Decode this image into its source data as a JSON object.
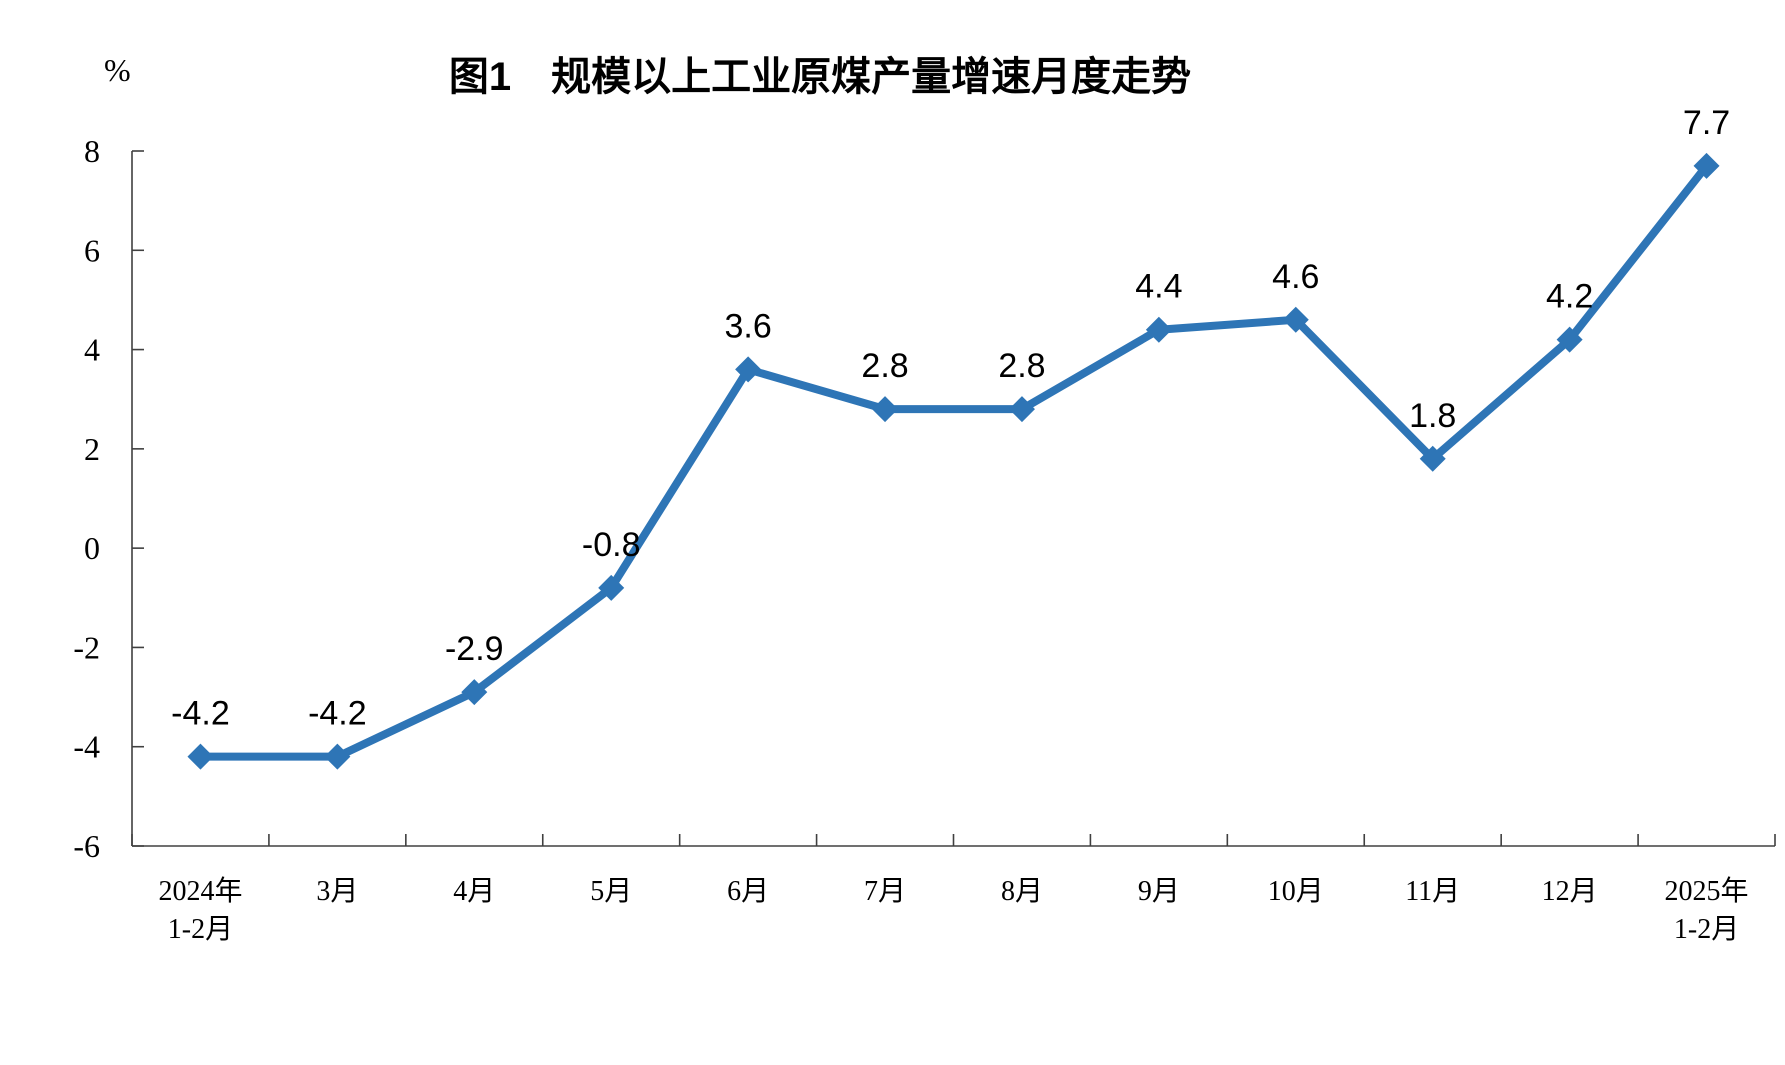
{
  "chart_data": {
    "type": "line",
    "title": "图1　规模以上工业原煤产量增速月度走势",
    "unit_label": "%",
    "categories": [
      [
        "2024年",
        "1-2月"
      ],
      [
        "3月"
      ],
      [
        "4月"
      ],
      [
        "5月"
      ],
      [
        "6月"
      ],
      [
        "7月"
      ],
      [
        "8月"
      ],
      [
        "9月"
      ],
      [
        "10月"
      ],
      [
        "11月"
      ],
      [
        "12月"
      ],
      [
        "2025年",
        "1-2月"
      ]
    ],
    "values": [
      -4.2,
      -4.2,
      -2.9,
      -0.8,
      3.6,
      2.8,
      2.8,
      4.4,
      4.6,
      1.8,
      4.2,
      7.7
    ],
    "data_labels": [
      "-4.2",
      "-4.2",
      "-2.9",
      "-0.8",
      "3.6",
      "2.8",
      "2.8",
      "4.4",
      "4.6",
      "1.8",
      "4.2",
      "7.7"
    ],
    "ylim": [
      -6,
      8
    ],
    "yticks": [
      8,
      6,
      4,
      2,
      0,
      -2,
      -4,
      -6
    ],
    "grid": false,
    "legend": "none",
    "marker": "diamond",
    "colors": {
      "line": "#2E75B6",
      "axis": "#404040",
      "text": "#000000"
    }
  }
}
